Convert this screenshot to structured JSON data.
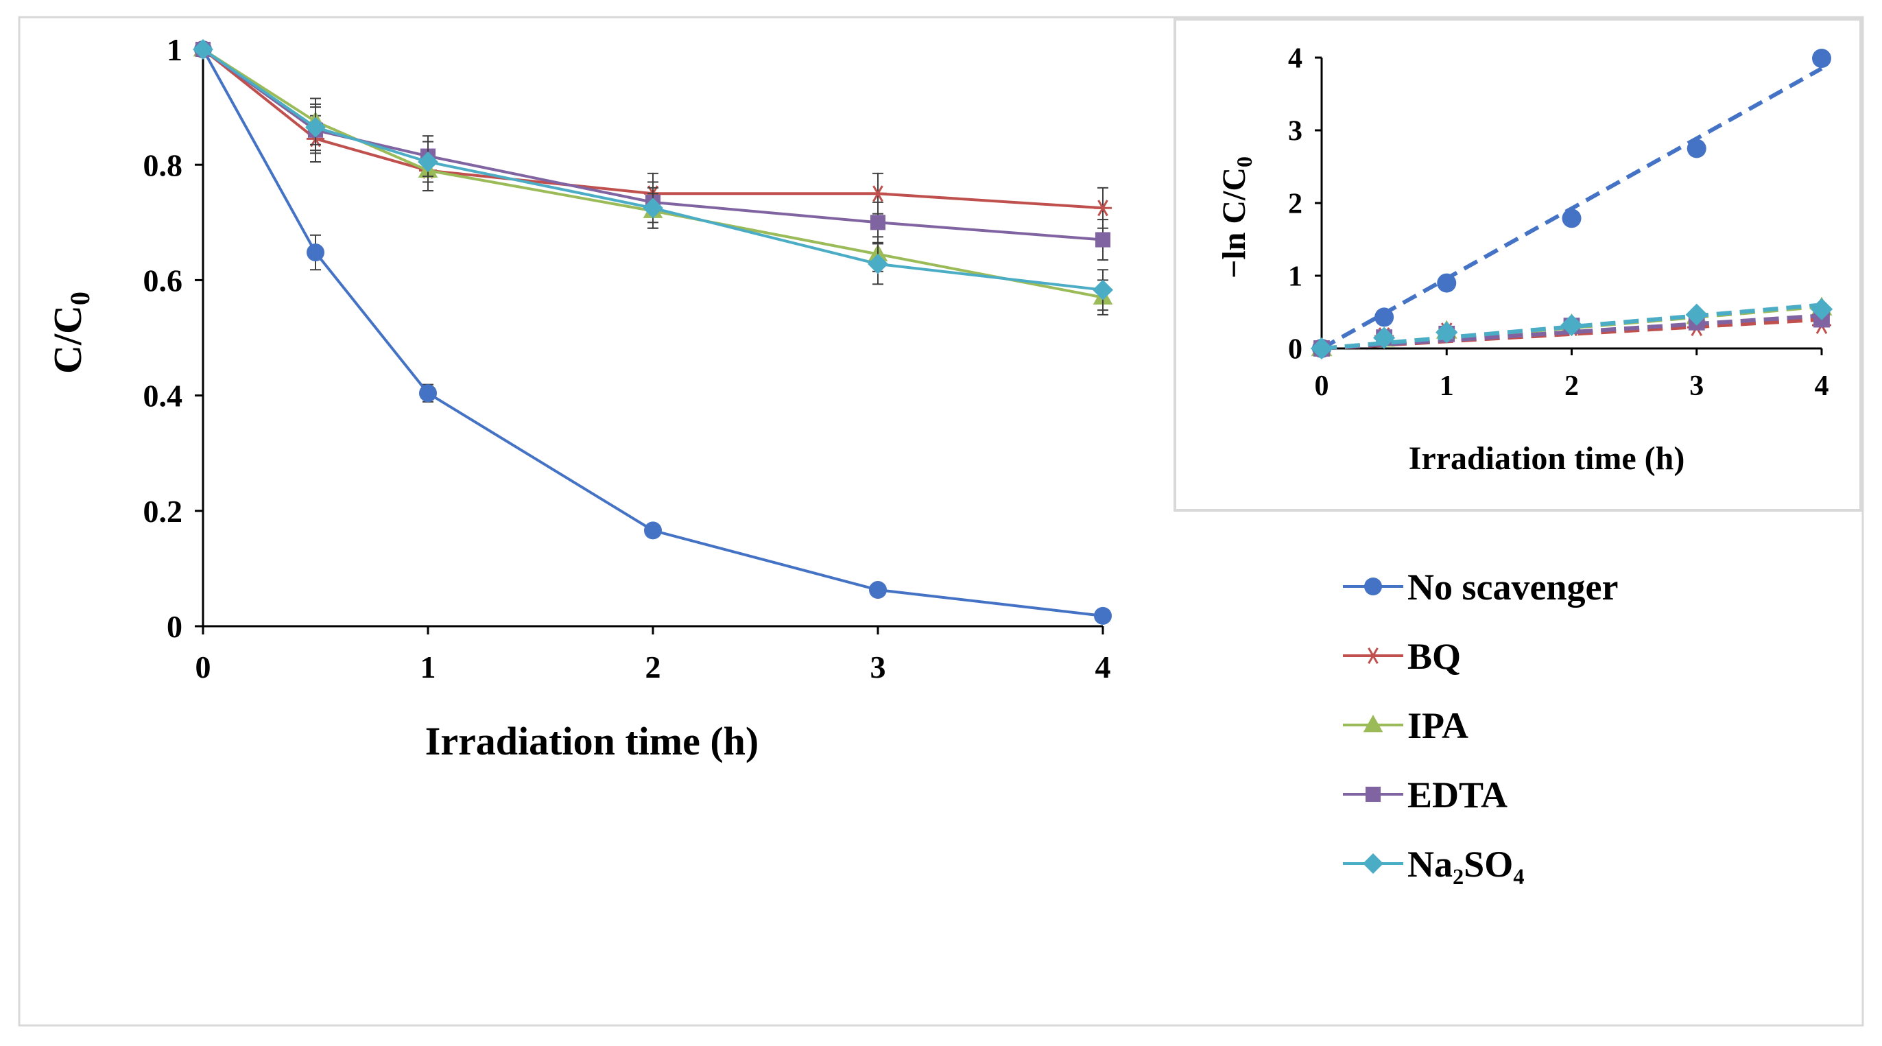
{
  "chart_data": [
    {
      "type": "line",
      "title": "",
      "xlabel": "Irradiation time (h)",
      "ylabel_main": "C/C",
      "ylabel_sub": "0",
      "xlim": [
        0,
        4
      ],
      "ylim": [
        0,
        1
      ],
      "xticks": [
        0,
        1,
        2,
        3,
        4
      ],
      "xtick_labels": [
        "0",
        "1",
        "2",
        "3",
        "4"
      ],
      "yticks": [
        0,
        0.2,
        0.4,
        0.6,
        0.8,
        1
      ],
      "ytick_labels": [
        "0",
        "0.2",
        "0.4",
        "0.6",
        "0.8",
        "1"
      ],
      "x": [
        0,
        0.5,
        1,
        2,
        3,
        4
      ],
      "series": [
        {
          "name": "No scavenger",
          "color": "#4472C4",
          "marker": "circle",
          "values": [
            1.0,
            0.648,
            0.404,
            0.166,
            0.063,
            0.018
          ],
          "errors": [
            0,
            0.03,
            0.015,
            0.005,
            0.005,
            0.005
          ]
        },
        {
          "name": "BQ",
          "color": "#C0504D",
          "marker": "star",
          "values": [
            1.0,
            0.845,
            0.79,
            0.75,
            0.75,
            0.725
          ],
          "errors": [
            0,
            0.04,
            0.035,
            0.035,
            0.035,
            0.035
          ]
        },
        {
          "name": "IPA",
          "color": "#9BBB59",
          "marker": "triangle",
          "values": [
            1.0,
            0.875,
            0.79,
            0.72,
            0.645,
            0.57
          ],
          "errors": [
            0,
            0.04,
            0.035,
            0.03,
            0.03,
            0.03
          ]
        },
        {
          "name": "EDTA",
          "color": "#8064A2",
          "marker": "square",
          "values": [
            1.0,
            0.86,
            0.815,
            0.735,
            0.7,
            0.67
          ],
          "errors": [
            0,
            0.04,
            0.035,
            0.035,
            0.035,
            0.035
          ]
        },
        {
          "name": "Na₂SO₄",
          "color": "#4BACC6",
          "marker": "diamond",
          "values": [
            1.0,
            0.865,
            0.805,
            0.725,
            0.628,
            0.583
          ],
          "errors": [
            0,
            0.04,
            0.035,
            0.035,
            0.035,
            0.035
          ]
        }
      ]
    },
    {
      "type": "scatter",
      "title": "",
      "xlabel": "Irradiation  time (h)",
      "ylabel_main": "−ln C/C",
      "ylabel_sub": "0",
      "xlim": [
        0,
        4
      ],
      "ylim": [
        0,
        4
      ],
      "xticks": [
        0,
        1,
        2,
        3,
        4
      ],
      "xtick_labels": [
        "0",
        "1",
        "2",
        "3",
        "4"
      ],
      "yticks": [
        0,
        1,
        2,
        3,
        4
      ],
      "ytick_labels": [
        "0",
        "1",
        "2",
        "3",
        "4"
      ],
      "x": [
        0,
        0.5,
        1,
        2,
        3,
        4
      ],
      "series": [
        {
          "name": "No scavenger",
          "color": "#4472C4",
          "marker": "circle",
          "values": [
            0,
            0.43,
            0.9,
            1.79,
            2.75,
            3.99
          ],
          "fit": [
            0,
            3.85
          ]
        },
        {
          "name": "BQ",
          "color": "#C0504D",
          "marker": "star",
          "values": [
            0,
            0.17,
            0.235,
            0.29,
            0.29,
            0.32
          ],
          "fit": [
            0,
            0.4
          ]
        },
        {
          "name": "IPA",
          "color": "#9BBB59",
          "marker": "triangle",
          "values": [
            0,
            0.13,
            0.24,
            0.33,
            0.44,
            0.56
          ],
          "fit": [
            0,
            0.58
          ]
        },
        {
          "name": "EDTA",
          "color": "#8064A2",
          "marker": "square",
          "values": [
            0,
            0.15,
            0.2,
            0.31,
            0.36,
            0.4
          ],
          "fit": [
            0,
            0.45
          ]
        },
        {
          "name": "Na₂SO₄",
          "color": "#4BACC6",
          "marker": "diamond",
          "values": [
            0,
            0.145,
            0.22,
            0.32,
            0.465,
            0.54
          ],
          "fit": [
            0,
            0.6
          ]
        }
      ]
    }
  ],
  "legend": {
    "placement": "right",
    "entries": [
      {
        "label": "No scavenger",
        "color": "#4472C4",
        "marker": "circle"
      },
      {
        "label": "BQ",
        "color": "#C0504D",
        "marker": "star"
      },
      {
        "label": "IPA",
        "color": "#9BBB59",
        "marker": "triangle"
      },
      {
        "label": "EDTA",
        "color": "#8064A2",
        "marker": "square"
      },
      {
        "label": "Na₂SO₄",
        "color": "#4BACC6",
        "marker": "diamond"
      }
    ]
  }
}
